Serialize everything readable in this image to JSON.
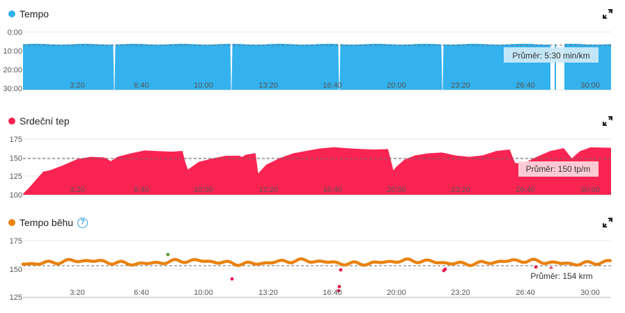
{
  "colors": {
    "tempo": "#33b2ee",
    "heart": "#fa2452",
    "cadence": "#e9820e",
    "cadence_outlier": "#e8174a",
    "cadence_green": "#5aa02c"
  },
  "panels": [
    {
      "title": "Tempo",
      "avg_label": "Průměr: 5:30 min/km",
      "expand_icon": "expand-icon",
      "y_ticks": [
        "0:00",
        "10:00",
        "20:00",
        "30:00"
      ],
      "x_ticks": [
        "3:20",
        "6:40",
        "10:00",
        "13:20",
        "16:40",
        "20:00",
        "23:20",
        "26:40",
        "30:00"
      ]
    },
    {
      "title": "Srdeční tep",
      "avg_label": "Průměr: 150 tp/m",
      "expand_icon": "expand-icon",
      "y_ticks": [
        "175",
        "150",
        "125",
        "100"
      ],
      "x_ticks": [
        "3:20",
        "6:40",
        "10:00",
        "13:20",
        "16:40",
        "20:00",
        "23:20",
        "26:40",
        "30:00"
      ]
    },
    {
      "title": "Tempo běhu",
      "avg_label": "Průměr: 154 krm",
      "help_icon": "help-icon",
      "expand_icon": "expand-icon",
      "y_ticks": [
        "175",
        "150",
        "125"
      ],
      "x_ticks": [
        "3:20",
        "6:40",
        "10:00",
        "13:20",
        "16:40",
        "20:00",
        "23:20",
        "26:40",
        "30:00"
      ]
    }
  ],
  "chart_data": [
    {
      "type": "area",
      "title": "Tempo",
      "x_unit": "mm:ss",
      "x_range": [
        "0:00",
        "31:00"
      ],
      "y_range": [
        "0:00",
        "30:00"
      ],
      "y_inverted": true,
      "average": "5:30",
      "dropouts_at": [
        "6:00",
        "11:40",
        "17:10",
        "22:20",
        "28:30",
        "28:50"
      ]
    },
    {
      "type": "area",
      "title": "Srdeční tep",
      "x_range": [
        "0:00",
        "31:00"
      ],
      "y_range": [
        100,
        185
      ],
      "average": 150,
      "points": [
        [
          0,
          101
        ],
        [
          0.5,
          110
        ],
        [
          1,
          122
        ],
        [
          1.5,
          130
        ],
        [
          2,
          134
        ],
        [
          3,
          140
        ],
        [
          4,
          147
        ],
        [
          5,
          150
        ],
        [
          6,
          150
        ],
        [
          6.5,
          145
        ],
        [
          7,
          152
        ],
        [
          8,
          157
        ],
        [
          9,
          160
        ],
        [
          10,
          158
        ],
        [
          11,
          157
        ],
        [
          11.8,
          158
        ],
        [
          12,
          144
        ],
        [
          12.2,
          135
        ],
        [
          13,
          145
        ],
        [
          14,
          150
        ],
        [
          15,
          153
        ],
        [
          16,
          152
        ],
        [
          16.2,
          150
        ],
        [
          16.5,
          155
        ],
        [
          17.2,
          156
        ],
        [
          17.4,
          130
        ],
        [
          18,
          140
        ],
        [
          19,
          150
        ],
        [
          20,
          157
        ],
        [
          21,
          160
        ],
        [
          22,
          162
        ],
        [
          23,
          163
        ],
        [
          24,
          162
        ],
        [
          25,
          162
        ],
        [
          26,
          162
        ],
        [
          27,
          162.5
        ],
        [
          27.4,
          132
        ],
        [
          27.6,
          138
        ],
        [
          28.2,
          146
        ],
        [
          29,
          152
        ],
        [
          30,
          155
        ],
        [
          31,
          157
        ],
        [
          32,
          154
        ],
        [
          33,
          152
        ],
        [
          34,
          153
        ],
        [
          35,
          158
        ],
        [
          36,
          160
        ],
        [
          36.4,
          144
        ],
        [
          37,
          142
        ],
        [
          38,
          152
        ],
        [
          39,
          160
        ],
        [
          40,
          163
        ],
        [
          40.6,
          150
        ],
        [
          41.2,
          158
        ],
        [
          42,
          163
        ],
        [
          43.5,
          163
        ]
      ]
    },
    {
      "type": "scatter",
      "title": "Tempo běhu",
      "x_range": [
        "0:00",
        "31:00"
      ],
      "y_range": [
        125,
        175
      ],
      "average": 154,
      "baseline_approx": 157
    }
  ]
}
